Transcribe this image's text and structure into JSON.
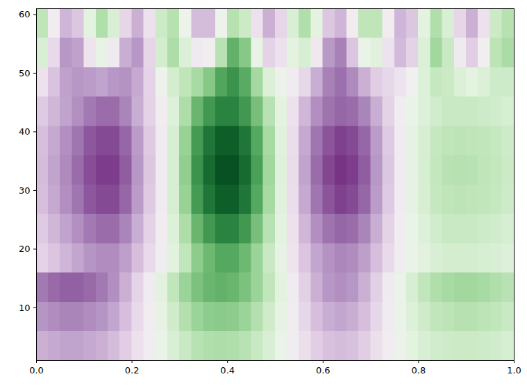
{
  "chart_data": {
    "type": "heatmap",
    "xbins": [
      0,
      0.025,
      0.05,
      0.075,
      0.1,
      0.125,
      0.15,
      0.175,
      0.2,
      0.225,
      0.25,
      0.275,
      0.3,
      0.325,
      0.35,
      0.375,
      0.4,
      0.425,
      0.45,
      0.475,
      0.5,
      0.525,
      0.55,
      0.575,
      0.6,
      0.625,
      0.65,
      0.675,
      0.7,
      0.725,
      0.75,
      0.775,
      0.8,
      0.825,
      0.85,
      0.875,
      0.9,
      0.925,
      0.95,
      0.975,
      1
    ],
    "ybins": [
      1,
      6,
      11,
      16,
      21,
      26,
      31,
      36,
      41,
      46,
      51,
      56,
      61
    ],
    "values": [
      [
        -0.35,
        -0.38,
        -0.4,
        -0.4,
        -0.38,
        -0.35,
        -0.3,
        -0.22,
        -0.12,
        -0.03,
        0.08,
        0.18,
        0.26,
        0.32,
        0.35,
        0.36,
        0.35,
        0.32,
        0.26,
        0.18,
        0.08,
        -0.03,
        -0.13,
        -0.22,
        -0.28,
        -0.3,
        -0.28,
        -0.22,
        -0.13,
        -0.04,
        0.05,
        0.12,
        0.18,
        0.22,
        0.24,
        0.25,
        0.25,
        0.24,
        0.22,
        0.2
      ],
      [
        -0.46,
        -0.49,
        -0.52,
        -0.52,
        -0.49,
        -0.46,
        -0.39,
        -0.29,
        -0.16,
        -0.04,
        0.1,
        0.23,
        0.34,
        0.42,
        0.46,
        0.47,
        0.46,
        0.42,
        0.34,
        0.23,
        0.1,
        -0.04,
        -0.17,
        -0.29,
        -0.36,
        -0.39,
        -0.36,
        -0.29,
        -0.17,
        -0.05,
        0.07,
        0.16,
        0.23,
        0.29,
        0.31,
        0.33,
        0.33,
        0.31,
        0.29,
        0.26
      ],
      [
        -0.56,
        -0.61,
        -0.64,
        -0.64,
        -0.61,
        -0.56,
        -0.48,
        -0.35,
        -0.19,
        -0.05,
        0.13,
        0.29,
        0.42,
        0.51,
        0.56,
        0.58,
        0.56,
        0.51,
        0.42,
        0.29,
        0.13,
        -0.05,
        -0.21,
        -0.35,
        -0.45,
        -0.48,
        -0.45,
        -0.35,
        -0.21,
        -0.06,
        0.08,
        0.19,
        0.29,
        0.35,
        0.38,
        0.4,
        0.4,
        0.38,
        0.35,
        0.32
      ],
      [
        -0.2,
        -0.26,
        -0.33,
        -0.39,
        -0.46,
        -0.49,
        -0.49,
        -0.42,
        -0.29,
        -0.16,
        -0.03,
        0.13,
        0.29,
        0.46,
        0.55,
        0.62,
        0.62,
        0.55,
        0.42,
        0.26,
        0.1,
        -0.1,
        -0.26,
        -0.39,
        -0.47,
        -0.51,
        -0.49,
        -0.42,
        -0.29,
        -0.16,
        -0.03,
        0.07,
        0.13,
        0.18,
        0.21,
        0.21,
        0.21,
        0.2,
        0.18,
        0.16
      ],
      [
        -0.24,
        -0.32,
        -0.4,
        -0.48,
        -0.56,
        -0.6,
        -0.6,
        -0.52,
        -0.36,
        -0.2,
        -0.04,
        0.16,
        0.36,
        0.56,
        0.68,
        0.76,
        0.76,
        0.68,
        0.52,
        0.32,
        0.12,
        -0.12,
        -0.32,
        -0.48,
        -0.58,
        -0.62,
        -0.6,
        -0.52,
        -0.36,
        -0.2,
        -0.04,
        0.08,
        0.16,
        0.22,
        0.26,
        0.26,
        0.26,
        0.24,
        0.22,
        0.2
      ],
      [
        -0.29,
        -0.38,
        -0.48,
        -0.57,
        -0.67,
        -0.71,
        -0.71,
        -0.62,
        -0.43,
        -0.24,
        -0.05,
        0.19,
        0.43,
        0.67,
        0.81,
        0.9,
        0.9,
        0.81,
        0.62,
        0.38,
        0.14,
        -0.14,
        -0.38,
        -0.57,
        -0.68,
        -0.74,
        -0.71,
        -0.62,
        -0.43,
        -0.24,
        -0.05,
        0.1,
        0.19,
        0.27,
        0.3,
        0.31,
        0.3,
        0.29,
        0.27,
        0.24
      ],
      [
        -0.3,
        -0.4,
        -0.5,
        -0.6,
        -0.7,
        -0.75,
        -0.75,
        -0.65,
        -0.45,
        -0.25,
        -0.05,
        0.2,
        0.45,
        0.7,
        0.85,
        0.95,
        0.95,
        0.85,
        0.65,
        0.4,
        0.15,
        -0.15,
        -0.4,
        -0.6,
        -0.72,
        -0.78,
        -0.75,
        -0.65,
        -0.45,
        -0.25,
        -0.05,
        0.1,
        0.2,
        0.28,
        0.32,
        0.33,
        0.32,
        0.3,
        0.28,
        0.25
      ],
      [
        -0.29,
        -0.38,
        -0.48,
        -0.57,
        -0.67,
        -0.71,
        -0.71,
        -0.62,
        -0.43,
        -0.24,
        -0.05,
        0.19,
        0.43,
        0.67,
        0.81,
        0.9,
        0.9,
        0.81,
        0.62,
        0.38,
        0.14,
        -0.14,
        -0.38,
        -0.57,
        -0.68,
        -0.74,
        -0.71,
        -0.62,
        -0.43,
        -0.24,
        -0.05,
        0.1,
        0.19,
        0.27,
        0.3,
        0.31,
        0.3,
        0.29,
        0.27,
        0.24
      ],
      [
        -0.24,
        -0.32,
        -0.4,
        -0.48,
        -0.56,
        -0.6,
        -0.6,
        -0.52,
        -0.36,
        -0.2,
        -0.04,
        0.16,
        0.36,
        0.56,
        0.68,
        0.76,
        0.76,
        0.68,
        0.52,
        0.32,
        0.12,
        -0.12,
        -0.32,
        -0.48,
        -0.58,
        -0.62,
        -0.6,
        -0.52,
        -0.36,
        -0.2,
        -0.04,
        0.08,
        0.16,
        0.22,
        0.26,
        0.26,
        0.26,
        0.24,
        0.22,
        0.2
      ],
      [
        -0.12,
        -0.27,
        -0.41,
        -0.45,
        -0.43,
        -0.4,
        -0.45,
        -0.47,
        -0.38,
        -0.19,
        0.03,
        0.21,
        0.3,
        0.38,
        0.48,
        0.63,
        0.7,
        0.61,
        0.39,
        0.17,
        0.05,
        -0.05,
        -0.17,
        -0.36,
        -0.53,
        -0.59,
        -0.5,
        -0.35,
        -0.22,
        -0.17,
        -0.11,
        0.0,
        0.16,
        0.27,
        0.25,
        0.17,
        0.12,
        0.17,
        0.24,
        0.24
      ],
      [
        0.18,
        -0.16,
        -0.45,
        -0.41,
        -0.1,
        0.09,
        -0.06,
        -0.36,
        -0.45,
        -0.18,
        0.21,
        0.36,
        0.17,
        -0.06,
        -0.02,
        0.32,
        0.58,
        0.48,
        0.09,
        -0.2,
        -0.12,
        0.12,
        0.2,
        -0.07,
        -0.44,
        -0.53,
        -0.26,
        0.08,
        0.14,
        -0.11,
        -0.31,
        -0.2,
        0.17,
        0.4,
        0.26,
        -0.06,
        -0.22,
        -0.02,
        0.31,
        0.37
      ],
      [
        0.3,
        -0.04,
        -0.33,
        -0.25,
        0.12,
        0.35,
        0.18,
        -0.18,
        -0.35,
        -0.12,
        0.25,
        0.33,
        0.04,
        -0.3,
        -0.3,
        0.04,
        0.33,
        0.25,
        -0.12,
        -0.35,
        -0.18,
        0.18,
        0.35,
        0.12,
        -0.25,
        -0.33,
        -0.04,
        0.3,
        0.3,
        -0.04,
        -0.33,
        -0.25,
        0.12,
        0.35,
        0.18,
        -0.18,
        -0.35,
        -0.12,
        0.25,
        0.33
      ]
    ],
    "color": "PRGn",
    "color_range": [
      -1,
      1
    ],
    "xlim": [
      0,
      1
    ],
    "xticks": [
      {
        "value": 0,
        "label": "0.0"
      },
      0.2,
      0.4,
      0.6,
      0.8,
      {
        "value": 1,
        "label": "1.0"
      }
    ],
    "ylim": [
      1,
      61
    ],
    "yticks": [
      10,
      20,
      30,
      40,
      50,
      60
    ]
  }
}
